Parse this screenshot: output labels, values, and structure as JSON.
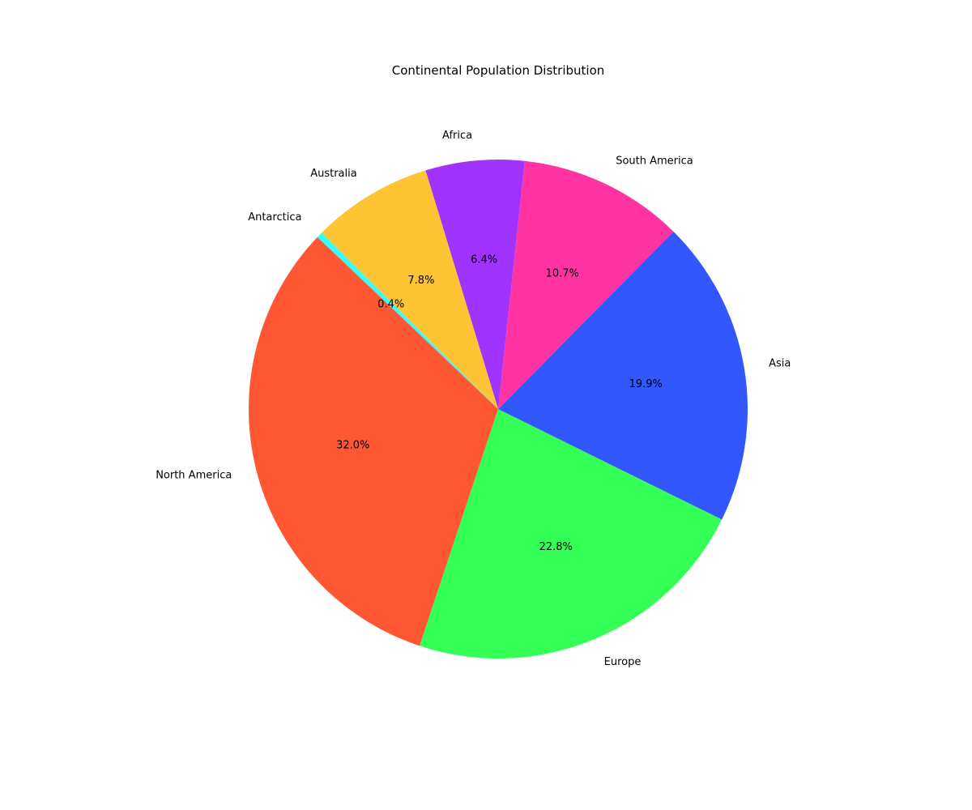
{
  "chart_data": {
    "type": "pie",
    "title": "Continental Population Distribution",
    "start_angle_deg": 135,
    "direction": "counterclockwise",
    "slices": [
      {
        "label": "Antarctica",
        "value": 0.4,
        "pct_label": "0.4%",
        "color": "#33FFFF"
      },
      {
        "label": "North America",
        "value": 32.0,
        "pct_label": "32.0%",
        "color": "#FF5733"
      },
      {
        "label": "Europe",
        "value": 22.8,
        "pct_label": "22.8%",
        "color": "#33FF57"
      },
      {
        "label": "Asia",
        "value": 19.9,
        "pct_label": "19.9%",
        "color": "#3357FF"
      },
      {
        "label": "South America",
        "value": 10.7,
        "pct_label": "10.7%",
        "color": "#FF33A1"
      },
      {
        "label": "Africa",
        "value": 6.4,
        "pct_label": "6.4%",
        "color": "#A133FF"
      },
      {
        "label": "Australia",
        "value": 7.8,
        "pct_label": "7.8%",
        "color": "#FFC433"
      }
    ]
  }
}
